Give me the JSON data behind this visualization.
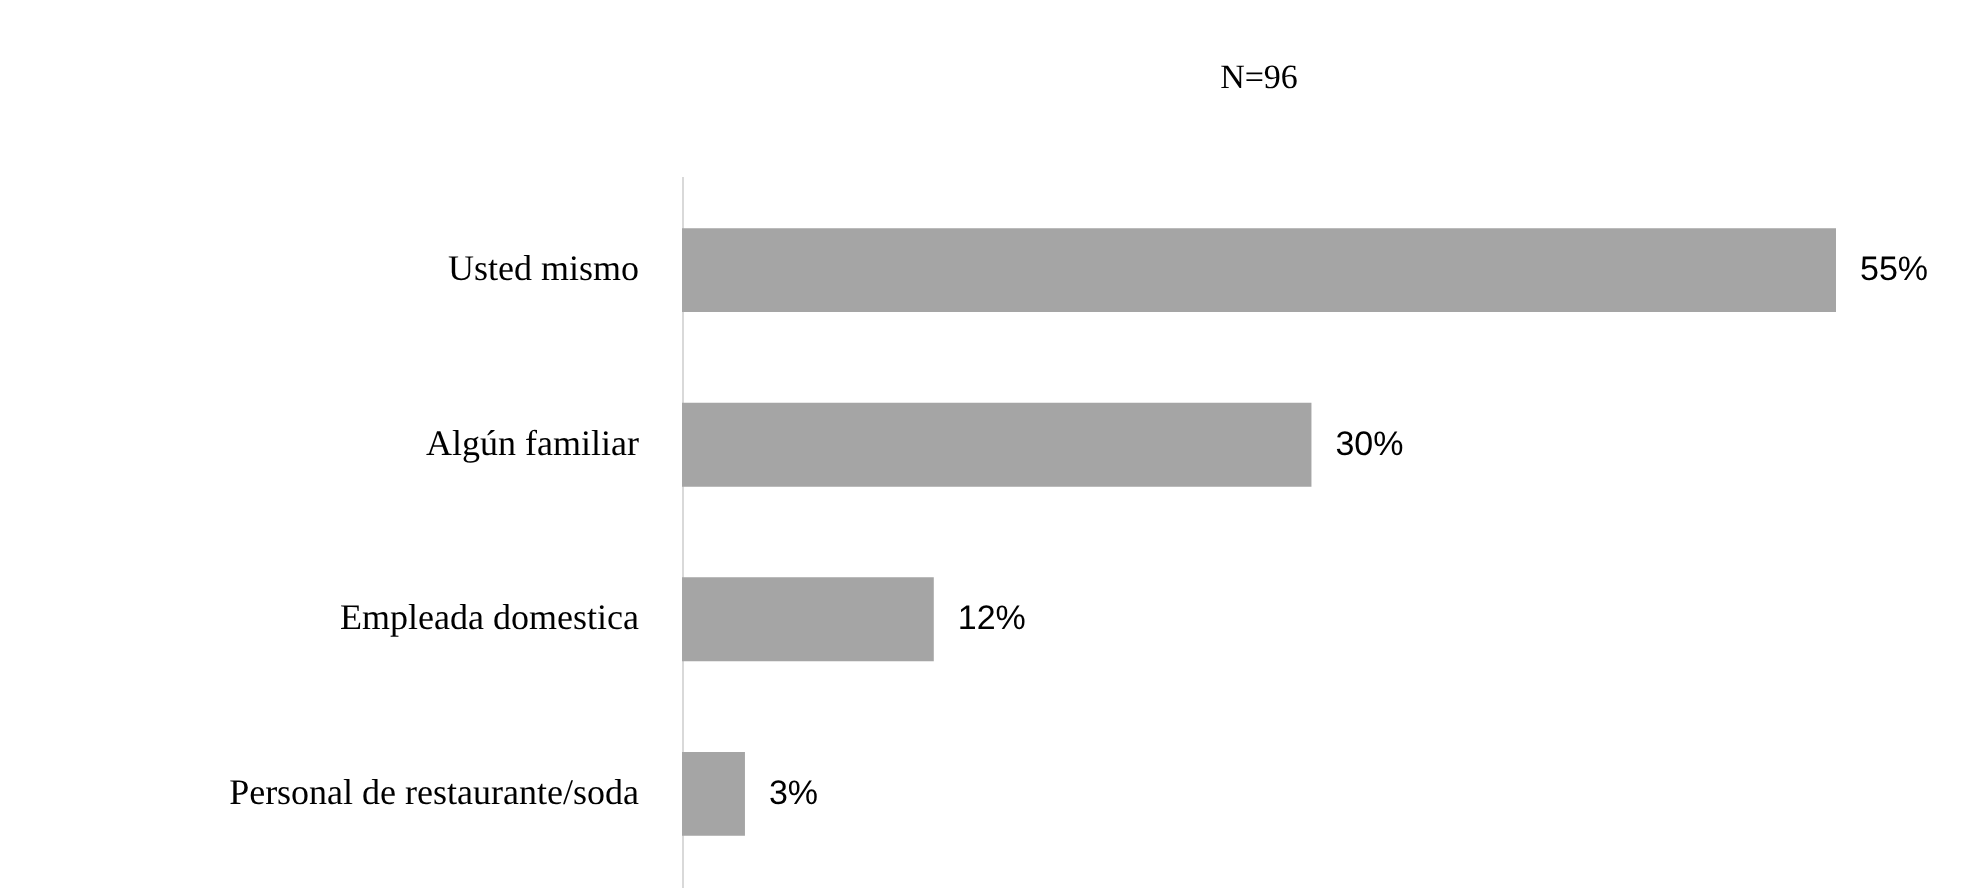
{
  "chart_data": {
    "type": "bar",
    "orientation": "horizontal",
    "title": "N=96",
    "categories": [
      "Usted mismo",
      "Algún familiar",
      "Empleada domestica",
      "Personal de restaurante/soda"
    ],
    "values": [
      55,
      30,
      12,
      3
    ],
    "value_labels": [
      "55%",
      "30%",
      "12%",
      "3%"
    ],
    "color": "#a5a5a5",
    "grid": false
  }
}
